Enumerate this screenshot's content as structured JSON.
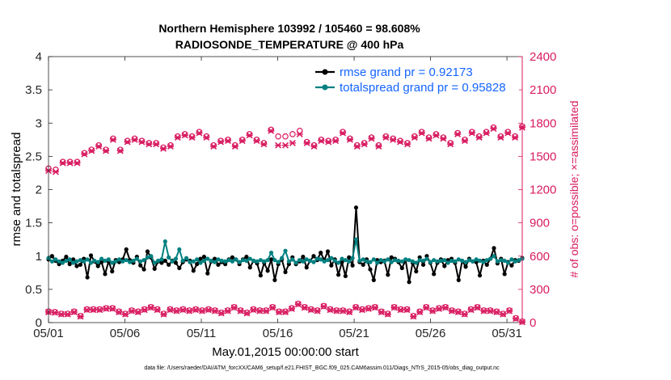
{
  "chart_data": {
    "type": "line",
    "title": "Northern Hemisphere 103992 / 105460 = 98.608%",
    "subtitle": "RADIOSONDE_TEMPERATURE @ 400 hPa",
    "xlabel": "May.01,2015 00:00:00 start",
    "ylabel_left": "rmse and totalspread",
    "ylabel_right": "# of obs: o=possible; ×=assimilated",
    "footnote": "data file: /Users/raeder/DAI/ATM_forcXX/CAM6_setup/f.e21.FHIST_BGC.f09_025.CAM6assim.011/Diags_NTrS_2015-05/obs_diag_output.nc",
    "x_ticks": [
      1,
      6,
      11,
      16,
      21,
      26,
      31
    ],
    "x_tick_labels": [
      "05/01",
      "05/06",
      "05/11",
      "05/16",
      "05/21",
      "05/26",
      "05/31"
    ],
    "xlim": [
      1,
      32
    ],
    "ylim_left": [
      0,
      4
    ],
    "y_ticks_left": [
      "0",
      "0.5",
      "1",
      "1.5",
      "2",
      "2.5",
      "3",
      "3.5",
      "4"
    ],
    "ylim_right": [
      0,
      2400
    ],
    "y_ticks_right": [
      "0",
      "300",
      "600",
      "900",
      "1200",
      "1500",
      "1800",
      "2100",
      "2400"
    ],
    "legend": [
      "rmse grand pr = 0.92173",
      "totalspread grand pr = 0.95828"
    ],
    "colors": {
      "rmse": "#000000",
      "spread": "#008080",
      "obs": "#d81b60",
      "legend_text": "#1565ff"
    },
    "series": [
      {
        "name": "rmse",
        "axis": "left",
        "values": [
          0.95,
          1.0,
          0.93,
          0.88,
          0.93,
          0.99,
          0.88,
          0.95,
          0.85,
          0.87,
          0.96,
          0.68,
          1.01,
          0.92,
          0.85,
          0.91,
          0.73,
          0.92,
          0.77,
          0.94,
          0.91,
          0.95,
          1.1,
          0.94,
          0.9,
          0.99,
          0.86,
          0.8,
          1.07,
          0.98,
          0.81,
          0.92,
          0.9,
          0.93,
          0.87,
          0.93,
          0.9,
          0.82,
          0.91,
          0.95,
          0.93,
          0.78,
          0.88,
          0.96,
          0.99,
          0.74,
          0.92,
          0.96,
          0.87,
          0.91,
          0.88,
          0.95,
          0.98,
          0.95,
          0.88,
          0.95,
          0.99,
          0.83,
          0.93,
          0.89,
          0.71,
          0.9,
          0.78,
          0.95,
          0.64,
          0.88,
          0.95,
          0.76,
          0.88,
          0.98,
          0.88,
          0.92,
          0.99,
          0.83,
          0.93,
          1.0,
          0.94,
          1.05,
          0.94,
          1.07,
          0.86,
          0.95,
          0.72,
          0.91,
          0.7,
          0.98,
          0.86,
          1.73,
          0.91,
          0.87,
          0.95,
          0.8,
          0.64,
          0.94,
          0.91,
          0.93,
          0.72,
          0.98,
          0.96,
          0.91,
          0.82,
          0.94,
          0.61,
          0.9,
          0.77,
          0.98,
          0.87,
          1.0,
          0.9,
          0.73,
          0.9,
          0.95,
          0.85,
          0.94,
          0.96,
          0.9,
          0.64,
          0.93,
          0.84,
          0.96,
          0.92,
          0.91,
          0.71,
          0.93,
          0.87,
          0.96,
          1.12,
          0.89,
          0.96,
          0.73,
          0.91,
          0.86,
          0.94,
          0.93,
          0.97
        ]
      },
      {
        "name": "totalspread",
        "axis": "left",
        "values": [
          0.97,
          0.92,
          0.95,
          0.92,
          0.9,
          0.93,
          0.95,
          0.9,
          0.92,
          0.94,
          0.92,
          0.95,
          0.9,
          0.93,
          0.91,
          0.96,
          0.93,
          0.95,
          0.9,
          0.92,
          0.95,
          0.92,
          0.94,
          0.91,
          0.93,
          0.96,
          0.92,
          0.94,
          0.98,
          1.0,
          0.9,
          0.93,
          0.95,
          1.22,
          0.98,
          0.92,
          0.96,
          1.1,
          0.93,
          0.97,
          0.91,
          0.92,
          0.95,
          0.9,
          0.93,
          0.96,
          0.93,
          0.91,
          0.95,
          0.93,
          0.92,
          0.94,
          0.92,
          0.95,
          0.91,
          0.94,
          0.93,
          0.96,
          0.93,
          0.92,
          0.94,
          0.92,
          0.94,
          1.05,
          0.94,
          0.91,
          0.97,
          1.08,
          0.92,
          0.95,
          0.9,
          0.94,
          0.92,
          0.95,
          0.93,
          0.91,
          0.96,
          0.95,
          0.92,
          0.94,
          0.97,
          0.93,
          0.9,
          0.96,
          0.94,
          0.92,
          0.97,
          1.25,
          0.93,
          0.95,
          0.92,
          0.91,
          0.95,
          0.9,
          0.94,
          0.92,
          0.95,
          0.91,
          0.94,
          0.93,
          0.92,
          0.95,
          0.94,
          0.92,
          0.9,
          0.94,
          0.93,
          0.96,
          0.91,
          0.94,
          0.92,
          0.93,
          0.94,
          0.9,
          0.93,
          0.92,
          0.95,
          0.93,
          0.91,
          0.94,
          0.92,
          0.95,
          0.93,
          0.91,
          0.94,
          0.96,
          1.0,
          0.92,
          0.94,
          0.93,
          0.9,
          0.95,
          0.92,
          0.94,
          0.96
        ]
      },
      {
        "name": "obs_possible_00Z_12Z",
        "axis": "right",
        "marker": "o",
        "values": [
          1390,
          1380,
          1450,
          1450,
          1450,
          1530,
          1560,
          1600,
          1560,
          1660,
          1560,
          1640,
          1660,
          1640,
          1620,
          1620,
          1580,
          1600,
          1680,
          1700,
          1680,
          1720,
          1680,
          1600,
          1640,
          1650,
          1600,
          1650,
          1700,
          1650,
          1620,
          1740,
          1680,
          1680,
          1700,
          1730,
          1630,
          1600,
          1650,
          1640,
          1650,
          1720,
          1660,
          1600,
          1620,
          1670,
          1600,
          1680,
          1660,
          1640,
          1620,
          1680,
          1720,
          1670,
          1700,
          1670,
          1620,
          1710,
          1650,
          1720,
          1680,
          1720,
          1760,
          1680,
          1720,
          1680,
          1770
        ]
      },
      {
        "name": "obs_assimilated_00Z_12Z",
        "axis": "right",
        "marker": "x",
        "values": [
          1370,
          1360,
          1440,
          1440,
          1440,
          1520,
          1550,
          1590,
          1550,
          1650,
          1550,
          1630,
          1650,
          1630,
          1610,
          1610,
          1570,
          1590,
          1670,
          1690,
          1670,
          1710,
          1670,
          1590,
          1630,
          1640,
          1590,
          1640,
          1690,
          1640,
          1610,
          1730,
          1600,
          1600,
          1620,
          1700,
          1620,
          1590,
          1640,
          1630,
          1640,
          1710,
          1650,
          1590,
          1610,
          1660,
          1590,
          1670,
          1650,
          1630,
          1610,
          1670,
          1710,
          1660,
          1690,
          1660,
          1610,
          1700,
          1640,
          1710,
          1670,
          1710,
          1750,
          1670,
          1710,
          1670,
          1760
        ]
      },
      {
        "name": "obs_possible_06Z_18Z",
        "axis": "right",
        "marker": "o",
        "values": [
          100,
          95,
          80,
          80,
          100,
          60,
          120,
          120,
          120,
          130,
          130,
          100,
          80,
          110,
          100,
          120,
          140,
          120,
          80,
          120,
          110,
          120,
          110,
          120,
          110,
          120,
          110,
          90,
          110,
          140,
          110,
          90,
          120,
          110,
          110,
          140,
          100,
          100,
          130,
          170,
          140,
          120,
          110,
          150,
          120,
          110,
          110,
          100,
          140,
          120,
          130,
          140,
          100,
          80,
          140,
          120,
          120,
          60,
          100,
          140,
          110,
          130,
          140,
          110,
          100,
          80,
          120,
          140,
          110,
          110,
          100,
          80,
          110,
          40,
          10
        ]
      },
      {
        "name": "obs_assimilated_06Z_18Z",
        "axis": "right",
        "marker": "x",
        "values": [
          95,
          90,
          75,
          75,
          95,
          55,
          115,
          115,
          115,
          125,
          125,
          95,
          75,
          105,
          95,
          115,
          135,
          115,
          75,
          115,
          105,
          115,
          105,
          115,
          105,
          115,
          105,
          85,
          105,
          135,
          105,
          85,
          115,
          105,
          105,
          135,
          95,
          95,
          125,
          165,
          135,
          115,
          105,
          145,
          115,
          105,
          105,
          95,
          135,
          115,
          125,
          135,
          95,
          75,
          135,
          115,
          115,
          55,
          95,
          135,
          105,
          125,
          135,
          105,
          95,
          75,
          115,
          135,
          105,
          105,
          95,
          75,
          105,
          35,
          5
        ]
      }
    ]
  }
}
